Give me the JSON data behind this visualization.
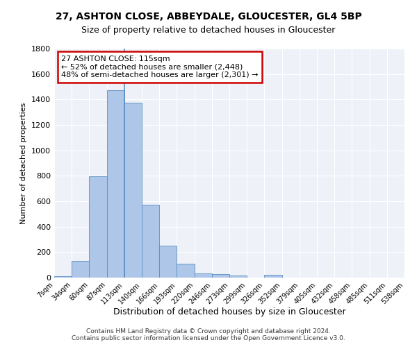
{
  "title_line1": "27, ASHTON CLOSE, ABBEYDALE, GLOUCESTER, GL4 5BP",
  "title_line2": "Size of property relative to detached houses in Gloucester",
  "xlabel": "Distribution of detached houses by size in Gloucester",
  "ylabel": "Number of detached properties",
  "footnote": "Contains HM Land Registry data © Crown copyright and database right 2024.\nContains public sector information licensed under the Open Government Licence v3.0.",
  "annotation_title": "27 ASHTON CLOSE: 115sqm",
  "annotation_line1": "← 52% of detached houses are smaller (2,448)",
  "annotation_line2": "48% of semi-detached houses are larger (2,301) →",
  "bar_values": [
    10,
    130,
    795,
    1470,
    1375,
    575,
    250,
    108,
    35,
    30,
    18,
    0,
    20,
    0,
    0,
    0,
    0,
    0,
    0,
    0
  ],
  "bin_labels": [
    "7sqm",
    "34sqm",
    "60sqm",
    "87sqm",
    "113sqm",
    "140sqm",
    "166sqm",
    "193sqm",
    "220sqm",
    "246sqm",
    "273sqm",
    "299sqm",
    "326sqm",
    "352sqm",
    "379sqm",
    "405sqm",
    "432sqm",
    "458sqm",
    "485sqm",
    "511sqm",
    "538sqm"
  ],
  "bar_color": "#aec6e8",
  "bar_edge_color": "#5a8fc2",
  "ylim": [
    0,
    1800
  ],
  "yticks": [
    0,
    200,
    400,
    600,
    800,
    1000,
    1200,
    1400,
    1600,
    1800
  ],
  "background_color": "#eef2f8",
  "annotation_box_color": "#ffffff",
  "annotation_box_edge": "#cc0000",
  "vline_position": 3.5
}
